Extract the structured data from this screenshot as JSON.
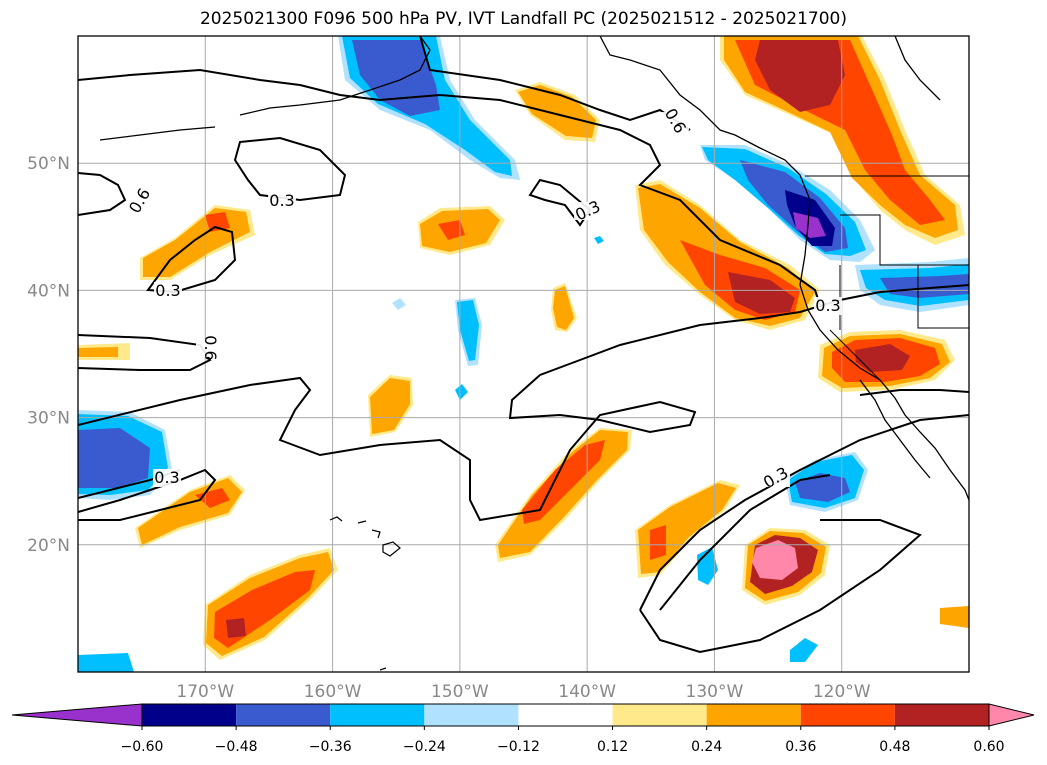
{
  "title": "2025021300 F096 500 hPa PV, IVT Landfall PC (2025021512 - 2025021700)",
  "map": {
    "lat_range": [
      10,
      60
    ],
    "lon_range": [
      -180,
      -110
    ],
    "lat_ticks": [
      {
        "value": 20,
        "label": "20°N"
      },
      {
        "value": 30,
        "label": "30°N"
      },
      {
        "value": 40,
        "label": "40°N"
      },
      {
        "value": 50,
        "label": "50°N"
      }
    ],
    "lon_ticks": [
      {
        "value": -170,
        "label": "170°W"
      },
      {
        "value": -160,
        "label": "160°W"
      },
      {
        "value": -150,
        "label": "150°W"
      },
      {
        "value": -140,
        "label": "140°W"
      },
      {
        "value": -130,
        "label": "130°W"
      },
      {
        "value": -120,
        "label": "120°W"
      }
    ],
    "grid": true,
    "contour_labels": [
      "0.3",
      "0.3",
      "0.3",
      "0.3",
      "0.3",
      "0.3",
      "0.6",
      "0.6",
      "0.6"
    ]
  },
  "colorbar": {
    "levels": [
      "−0.60",
      "−0.48",
      "−0.36",
      "−0.24",
      "−0.12",
      "0.12",
      "0.24",
      "0.36",
      "0.48",
      "0.60"
    ],
    "colors": [
      "#9932cc",
      "#00008b",
      "#3a5bcf",
      "#00bfff",
      "#b0e2ff",
      "#ffffff",
      "#ffe98a",
      "#ffa500",
      "#ff4500",
      "#b22222",
      "#ff88aa"
    ]
  }
}
